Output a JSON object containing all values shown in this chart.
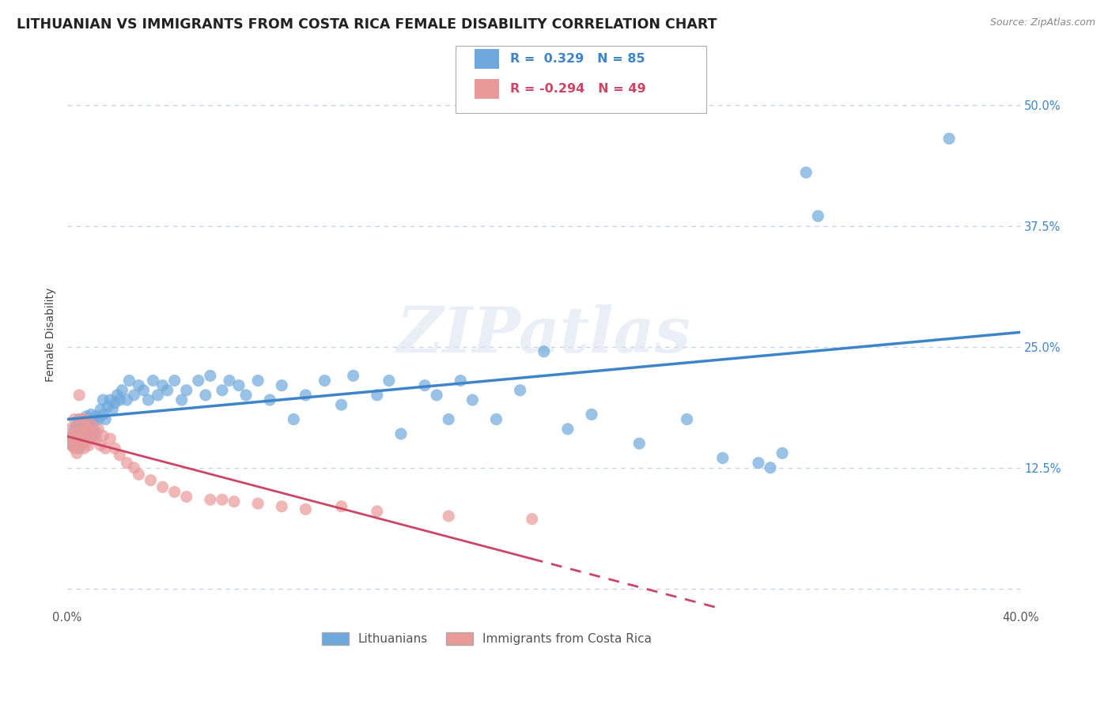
{
  "title": "LITHUANIAN VS IMMIGRANTS FROM COSTA RICA FEMALE DISABILITY CORRELATION CHART",
  "source": "Source: ZipAtlas.com",
  "ylabel": "Female Disability",
  "xlim": [
    0.0,
    0.4
  ],
  "ylim": [
    -0.02,
    0.545
  ],
  "blue_color": "#6fa8dc",
  "pink_color": "#ea9999",
  "blue_line_color": "#3d85c8",
  "pink_line_color": "#cc4466",
  "bg_color": "#ffffff",
  "grid_color": "#c8d4e8",
  "legend_R_blue": "0.329",
  "legend_N_blue": "85",
  "legend_R_pink": "-0.294",
  "legend_N_pink": "49",
  "title_fontsize": 12.5,
  "axis_label_fontsize": 10,
  "tick_fontsize": 10.5,
  "watermark_text": "ZIPatlas",
  "blue_scatter_x": [
    0.001,
    0.002,
    0.003,
    0.003,
    0.004,
    0.004,
    0.005,
    0.005,
    0.005,
    0.006,
    0.006,
    0.007,
    0.007,
    0.008,
    0.008,
    0.009,
    0.009,
    0.01,
    0.01,
    0.011,
    0.011,
    0.012,
    0.012,
    0.013,
    0.014,
    0.015,
    0.015,
    0.016,
    0.017,
    0.018,
    0.019,
    0.02,
    0.021,
    0.022,
    0.023,
    0.025,
    0.026,
    0.028,
    0.03,
    0.032,
    0.034,
    0.036,
    0.038,
    0.04,
    0.042,
    0.045,
    0.048,
    0.05,
    0.055,
    0.058,
    0.06,
    0.065,
    0.068,
    0.072,
    0.075,
    0.08,
    0.085,
    0.09,
    0.095,
    0.1,
    0.108,
    0.115,
    0.12,
    0.13,
    0.135,
    0.14,
    0.15,
    0.155,
    0.16,
    0.165,
    0.17,
    0.18,
    0.19,
    0.2,
    0.21,
    0.22,
    0.24,
    0.26,
    0.275,
    0.29,
    0.295,
    0.3,
    0.31,
    0.315,
    0.37
  ],
  "blue_scatter_y": [
    0.155,
    0.148,
    0.152,
    0.165,
    0.158,
    0.17,
    0.145,
    0.16,
    0.175,
    0.15,
    0.165,
    0.155,
    0.168,
    0.16,
    0.178,
    0.155,
    0.17,
    0.165,
    0.18,
    0.158,
    0.172,
    0.162,
    0.178,
    0.175,
    0.185,
    0.18,
    0.195,
    0.175,
    0.188,
    0.195,
    0.185,
    0.192,
    0.2,
    0.195,
    0.205,
    0.195,
    0.215,
    0.2,
    0.21,
    0.205,
    0.195,
    0.215,
    0.2,
    0.21,
    0.205,
    0.215,
    0.195,
    0.205,
    0.215,
    0.2,
    0.22,
    0.205,
    0.215,
    0.21,
    0.2,
    0.215,
    0.195,
    0.21,
    0.175,
    0.2,
    0.215,
    0.19,
    0.22,
    0.2,
    0.215,
    0.16,
    0.21,
    0.2,
    0.175,
    0.215,
    0.195,
    0.175,
    0.205,
    0.245,
    0.165,
    0.18,
    0.15,
    0.175,
    0.135,
    0.13,
    0.125,
    0.14,
    0.43,
    0.385,
    0.465
  ],
  "pink_scatter_x": [
    0.001,
    0.001,
    0.002,
    0.002,
    0.003,
    0.003,
    0.003,
    0.004,
    0.004,
    0.005,
    0.005,
    0.005,
    0.006,
    0.006,
    0.007,
    0.007,
    0.007,
    0.008,
    0.008,
    0.009,
    0.009,
    0.01,
    0.01,
    0.011,
    0.012,
    0.013,
    0.014,
    0.015,
    0.016,
    0.018,
    0.02,
    0.022,
    0.025,
    0.028,
    0.03,
    0.035,
    0.04,
    0.045,
    0.05,
    0.06,
    0.065,
    0.07,
    0.08,
    0.09,
    0.1,
    0.115,
    0.13,
    0.16,
    0.195
  ],
  "pink_scatter_y": [
    0.155,
    0.165,
    0.148,
    0.158,
    0.145,
    0.155,
    0.175,
    0.14,
    0.165,
    0.148,
    0.162,
    0.2,
    0.155,
    0.175,
    0.145,
    0.162,
    0.175,
    0.152,
    0.168,
    0.148,
    0.165,
    0.155,
    0.17,
    0.162,
    0.155,
    0.165,
    0.148,
    0.158,
    0.145,
    0.155,
    0.145,
    0.138,
    0.13,
    0.125,
    0.118,
    0.112,
    0.105,
    0.1,
    0.095,
    0.092,
    0.092,
    0.09,
    0.088,
    0.085,
    0.082,
    0.085,
    0.08,
    0.075,
    0.072
  ]
}
